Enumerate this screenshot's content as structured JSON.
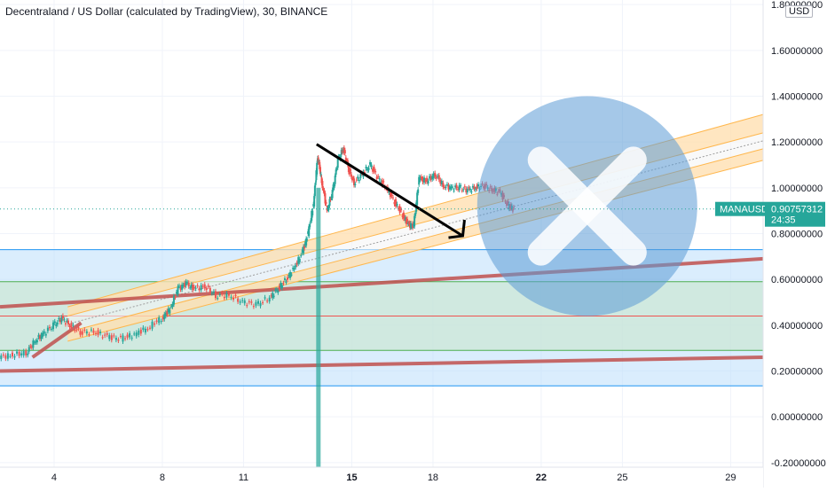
{
  "header": {
    "title": "Decentraland / US Dollar (calculated by TradingView), 30, BINANCE",
    "currency": "USD"
  },
  "chart_data": {
    "type": "candlestick",
    "symbol": "MANAUSD",
    "last_price": "0.90757312",
    "countdown": "24:35",
    "ylim": [
      -0.22,
      1.82
    ],
    "xlim": [
      2,
      30.2
    ],
    "y_ticks": [
      "1.80000000",
      "1.60000000",
      "1.40000000",
      "1.20000000",
      "1.00000000",
      "0.80000000",
      "0.60000000",
      "0.40000000",
      "0.20000000",
      "0.00000000",
      "-0.20000000"
    ],
    "y_tick_values": [
      1.8,
      1.6,
      1.4,
      1.2,
      1.0,
      0.8,
      0.6,
      0.4,
      0.2,
      0.0,
      -0.2
    ],
    "x_ticks": [
      {
        "label": "4",
        "value": 4,
        "bold": false
      },
      {
        "label": "8",
        "value": 8,
        "bold": false
      },
      {
        "label": "11",
        "value": 11,
        "bold": false
      },
      {
        "label": "15",
        "value": 15,
        "bold": true
      },
      {
        "label": "18",
        "value": 18,
        "bold": false
      },
      {
        "label": "22",
        "value": 22,
        "bold": true
      },
      {
        "label": "25",
        "value": 25,
        "bold": false
      },
      {
        "label": "29",
        "value": 29,
        "bold": false
      }
    ],
    "price_path": [
      [
        2.0,
        0.26
      ],
      [
        2.5,
        0.27
      ],
      [
        3.0,
        0.28
      ],
      [
        3.3,
        0.33
      ],
      [
        3.6,
        0.36
      ],
      [
        4.0,
        0.4
      ],
      [
        4.3,
        0.43
      ],
      [
        4.6,
        0.4
      ],
      [
        5.0,
        0.37
      ],
      [
        5.5,
        0.37
      ],
      [
        6.0,
        0.35
      ],
      [
        6.5,
        0.34
      ],
      [
        7.0,
        0.36
      ],
      [
        7.5,
        0.39
      ],
      [
        8.0,
        0.43
      ],
      [
        8.3,
        0.47
      ],
      [
        8.6,
        0.56
      ],
      [
        8.9,
        0.58
      ],
      [
        9.2,
        0.56
      ],
      [
        9.6,
        0.57
      ],
      [
        10.0,
        0.53
      ],
      [
        10.5,
        0.53
      ],
      [
        11.0,
        0.5
      ],
      [
        11.5,
        0.49
      ],
      [
        12.0,
        0.52
      ],
      [
        12.3,
        0.56
      ],
      [
        12.6,
        0.6
      ],
      [
        12.9,
        0.65
      ],
      [
        13.2,
        0.72
      ],
      [
        13.4,
        0.8
      ],
      [
        13.6,
        0.93
      ],
      [
        13.75,
        1.14
      ],
      [
        13.9,
        1.03
      ],
      [
        14.1,
        0.9
      ],
      [
        14.3,
        0.98
      ],
      [
        14.5,
        1.12
      ],
      [
        14.7,
        1.17
      ],
      [
        14.9,
        1.08
      ],
      [
        15.1,
        1.02
      ],
      [
        15.4,
        1.06
      ],
      [
        15.7,
        1.1
      ],
      [
        16.0,
        1.04
      ],
      [
        16.3,
        1.0
      ],
      [
        16.6,
        0.94
      ],
      [
        16.9,
        0.88
      ],
      [
        17.1,
        0.84
      ],
      [
        17.3,
        0.83
      ],
      [
        17.5,
        1.04
      ],
      [
        17.8,
        1.03
      ],
      [
        18.1,
        1.06
      ],
      [
        18.4,
        1.01
      ],
      [
        18.7,
        1.0
      ],
      [
        19.0,
        1.0
      ],
      [
        19.3,
        0.99
      ],
      [
        19.6,
        1.0
      ],
      [
        19.9,
        1.01
      ],
      [
        20.2,
        0.99
      ],
      [
        20.5,
        0.98
      ],
      [
        20.8,
        0.92
      ],
      [
        21.0,
        0.907
      ]
    ],
    "spike": {
      "x": 13.75,
      "low": -0.28
    },
    "zones": [
      {
        "name": "blue-zone",
        "y_top": 0.73,
        "y_bottom": 0.135,
        "color": "#bbdefb"
      },
      {
        "name": "green-zone",
        "y_top": 0.59,
        "y_bottom": 0.29,
        "color": "#c8e6c9"
      }
    ],
    "hlines": [
      {
        "name": "level-073",
        "y": 0.73,
        "color": "#2196f3"
      },
      {
        "name": "level-059",
        "y": 0.59,
        "color": "#4caf50"
      },
      {
        "name": "level-044",
        "y": 0.44,
        "color": "#ef5350"
      },
      {
        "name": "level-029",
        "y": 0.29,
        "color": "#4caf50"
      },
      {
        "name": "level-0135",
        "y": 0.135,
        "color": "#2196f3"
      }
    ],
    "trend_lines": [
      {
        "name": "upper-trendline",
        "x1": 2.0,
        "y1": 0.48,
        "x2": 30.2,
        "y2": 0.69,
        "color": "#c0504d"
      },
      {
        "name": "lower-trendline",
        "x1": 2.0,
        "y1": 0.2,
        "x2": 30.2,
        "y2": 0.26,
        "color": "#c0504d"
      },
      {
        "name": "short-support-line",
        "x1": 3.2,
        "y1": 0.26,
        "x2": 5.0,
        "y2": 0.41,
        "color": "#c0504d"
      },
      {
        "name": "down-arrow-line",
        "x1": 13.7,
        "y1": 1.19,
        "x2": 19.1,
        "y2": 0.79,
        "color": "#000000"
      }
    ],
    "channel": {
      "x1": 4.5,
      "x2": 30.2,
      "upper": [
        0.48,
        1.32
      ],
      "upper_inner": [
        0.44,
        1.24
      ],
      "lower_inner": [
        0.37,
        1.17
      ],
      "lower": [
        0.33,
        1.12
      ],
      "fill_color": "#ffe0b2",
      "line_color": "#ffb74d"
    },
    "circle": {
      "cx": 23.7,
      "cy": 0.92,
      "r": 0.48,
      "color": "#5b9bd5"
    }
  }
}
